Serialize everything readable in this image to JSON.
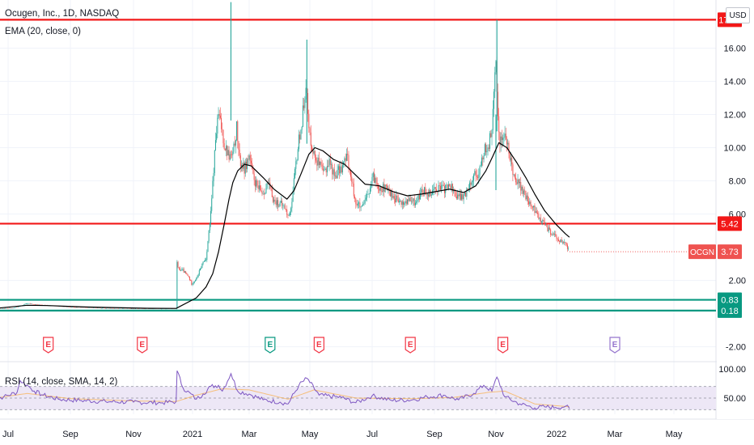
{
  "header": {
    "title": "Ocugen, Inc., 1D, NASDAQ",
    "ema_label": "EMA (20, close, 0)",
    "rsi_label": "RSI (14, close, SMA, 14, 2)",
    "currency": "USD"
  },
  "colors": {
    "up": "#26a69a",
    "down": "#ef5350",
    "ema": "#000000",
    "hline_red": "#f21818",
    "hline_green": "#089981",
    "rsi_line": "#7e57c2",
    "rsi_band": "#ede7f6",
    "earnings_red": "#f23645",
    "earnings_green": "#089981",
    "earnings_purple": "#9575cd"
  },
  "chart_data": {
    "type": "candlestick",
    "title": "Ocugen, Inc., 1D, NASDAQ",
    "currency": "USD",
    "x_ticks": [
      "Jul",
      "Sep",
      "Nov",
      "2021",
      "Mar",
      "May",
      "Jul",
      "Sep",
      "Nov",
      "2022",
      "Mar",
      "May"
    ],
    "y_ticks": [
      -2.0,
      2.0,
      6.0,
      8.0,
      10.0,
      12.0,
      14.0,
      16.0
    ],
    "y_range": [
      -2.8,
      18.9
    ],
    "last_price": {
      "label": "OCGN",
      "value": 3.73
    },
    "horizontal_levels": [
      {
        "value": 17.71,
        "color": "red"
      },
      {
        "value": 5.42,
        "color": "red"
      },
      {
        "value": 0.83,
        "color": "green"
      },
      {
        "value": 0.18,
        "color": "green"
      }
    ],
    "price_path": [
      [
        "2020-06-08",
        0.3
      ],
      [
        "2020-06-22",
        0.32
      ],
      [
        "2020-07-06",
        0.33
      ],
      [
        "2020-07-13",
        0.45
      ],
      [
        "2020-07-20",
        0.62
      ],
      [
        "2020-07-27",
        0.55
      ],
      [
        "2020-08-10",
        0.48
      ],
      [
        "2020-09-01",
        0.4
      ],
      [
        "2020-10-01",
        0.34
      ],
      [
        "2020-11-01",
        0.31
      ],
      [
        "2020-12-01",
        0.3
      ],
      [
        "2020-12-15",
        0.3
      ],
      [
        "2020-12-16",
        3.2
      ],
      [
        "2020-12-17",
        2.7
      ],
      [
        "2020-12-22",
        2.6
      ],
      [
        "2020-12-28",
        2.2
      ],
      [
        "2020-12-31",
        1.8
      ],
      [
        "2021-01-05",
        2.1
      ],
      [
        "2021-01-12",
        3.1
      ],
      [
        "2021-01-15",
        3.3
      ],
      [
        "2021-01-20",
        6.0
      ],
      [
        "2021-01-25",
        10.5
      ],
      [
        "2021-01-28",
        12.0
      ],
      [
        "2021-02-01",
        11.0
      ],
      [
        "2021-02-03",
        10.2
      ],
      [
        "2021-02-08",
        9.5
      ],
      [
        "2021-02-12",
        9.5
      ],
      [
        "2021-02-16",
        11.2
      ],
      [
        "2021-02-19",
        9.2
      ],
      [
        "2021-02-24",
        8.7
      ],
      [
        "2021-03-01",
        9.5
      ],
      [
        "2021-03-05",
        8.2
      ],
      [
        "2021-03-10",
        7.5
      ],
      [
        "2021-03-15",
        7.3
      ],
      [
        "2021-03-20",
        7.8
      ],
      [
        "2021-03-26",
        6.8
      ],
      [
        "2021-04-01",
        6.6
      ],
      [
        "2021-04-06",
        6.4
      ],
      [
        "2021-04-09",
        5.8
      ],
      [
        "2021-04-13",
        6.7
      ],
      [
        "2021-04-16",
        8.5
      ],
      [
        "2021-04-20",
        10.5
      ],
      [
        "2021-04-23",
        11.5
      ],
      [
        "2021-04-27",
        14.0
      ],
      [
        "2021-04-30",
        11.0
      ],
      [
        "2021-05-05",
        9.6
      ],
      [
        "2021-05-10",
        9.0
      ],
      [
        "2021-05-14",
        8.4
      ],
      [
        "2021-05-20",
        9.2
      ],
      [
        "2021-05-25",
        8.3
      ],
      [
        "2021-06-01",
        8.8
      ],
      [
        "2021-06-07",
        9.5
      ],
      [
        "2021-06-10",
        8.2
      ],
      [
        "2021-06-15",
        6.7
      ],
      [
        "2021-06-21",
        6.3
      ],
      [
        "2021-06-28",
        7.3
      ],
      [
        "2021-07-02",
        8.2
      ],
      [
        "2021-07-09",
        7.6
      ],
      [
        "2021-07-16",
        7.5
      ],
      [
        "2021-07-23",
        7.0
      ],
      [
        "2021-07-30",
        6.6
      ],
      [
        "2021-08-06",
        6.8
      ],
      [
        "2021-08-13",
        6.7
      ],
      [
        "2021-08-20",
        7.4
      ],
      [
        "2021-08-27",
        7.3
      ],
      [
        "2021-09-03",
        7.6
      ],
      [
        "2021-09-10",
        7.5
      ],
      [
        "2021-09-17",
        7.7
      ],
      [
        "2021-09-24",
        7.0
      ],
      [
        "2021-10-01",
        7.1
      ],
      [
        "2021-10-06",
        7.9
      ],
      [
        "2021-10-12",
        8.5
      ],
      [
        "2021-10-15",
        8.3
      ],
      [
        "2021-10-20",
        9.8
      ],
      [
        "2021-10-25",
        10.2
      ],
      [
        "2021-10-28",
        11.2
      ],
      [
        "2021-11-01",
        15.0
      ],
      [
        "2021-11-03",
        12.0
      ],
      [
        "2021-11-05",
        10.4
      ],
      [
        "2021-11-10",
        10.8
      ],
      [
        "2021-11-15",
        9.4
      ],
      [
        "2021-11-19",
        8.4
      ],
      [
        "2021-11-26",
        7.6
      ],
      [
        "2021-12-03",
        6.8
      ],
      [
        "2021-12-10",
        6.2
      ],
      [
        "2021-12-17",
        5.6
      ],
      [
        "2021-12-23",
        5.1
      ],
      [
        "2021-12-31",
        4.6
      ],
      [
        "2022-01-06",
        4.3
      ],
      [
        "2022-01-10",
        4.2
      ],
      [
        "2022-01-14",
        3.73
      ]
    ],
    "spikes": [
      [
        "2021-02-10",
        18.77
      ],
      [
        "2021-04-28",
        16.51
      ],
      [
        "2021-11-02",
        17.71
      ],
      [
        "2021-11-01",
        12.0
      ]
    ],
    "ema_20": [
      [
        "2020-06-08",
        0.29
      ],
      [
        "2020-07-20",
        0.5
      ],
      [
        "2020-08-10",
        0.48
      ],
      [
        "2020-09-15",
        0.4
      ],
      [
        "2020-11-15",
        0.32
      ],
      [
        "2020-12-15",
        0.31
      ],
      [
        "2021-01-05",
        0.95
      ],
      [
        "2021-01-15",
        1.6
      ],
      [
        "2021-01-22",
        2.4
      ],
      [
        "2021-01-28",
        3.7
      ],
      [
        "2021-02-03",
        5.4
      ],
      [
        "2021-02-08",
        6.9
      ],
      [
        "2021-02-12",
        7.9
      ],
      [
        "2021-02-17",
        8.6
      ],
      [
        "2021-02-24",
        9.0
      ],
      [
        "2021-03-03",
        8.9
      ],
      [
        "2021-03-15",
        8.2
      ],
      [
        "2021-03-26",
        7.5
      ],
      [
        "2021-04-08",
        6.9
      ],
      [
        "2021-04-15",
        7.4
      ],
      [
        "2021-04-22",
        8.4
      ],
      [
        "2021-04-30",
        9.6
      ],
      [
        "2021-05-06",
        10.0
      ],
      [
        "2021-05-14",
        9.8
      ],
      [
        "2021-05-24",
        9.3
      ],
      [
        "2021-06-04",
        9.0
      ],
      [
        "2021-06-14",
        8.4
      ],
      [
        "2021-06-24",
        7.8
      ],
      [
        "2021-07-08",
        7.7
      ],
      [
        "2021-07-22",
        7.35
      ],
      [
        "2021-08-05",
        7.1
      ],
      [
        "2021-08-19",
        7.2
      ],
      [
        "2021-09-02",
        7.35
      ],
      [
        "2021-09-16",
        7.5
      ],
      [
        "2021-09-30",
        7.3
      ],
      [
        "2021-10-12",
        7.7
      ],
      [
        "2021-10-22",
        8.6
      ],
      [
        "2021-10-29",
        9.5
      ],
      [
        "2021-11-04",
        10.3
      ],
      [
        "2021-11-12",
        10.0
      ],
      [
        "2021-11-22",
        9.1
      ],
      [
        "2021-12-01",
        8.2
      ],
      [
        "2021-12-10",
        7.2
      ],
      [
        "2021-12-20",
        6.2
      ],
      [
        "2021-12-31",
        5.4
      ],
      [
        "2022-01-10",
        4.8
      ],
      [
        "2022-01-14",
        4.6
      ]
    ],
    "earnings_markers": [
      {
        "date": "2020-08-10",
        "label": "E",
        "color": "red"
      },
      {
        "date": "2020-11-10",
        "label": "E",
        "color": "red"
      },
      {
        "date": "2021-03-22",
        "label": "E",
        "color": "green"
      },
      {
        "date": "2021-05-10",
        "label": "E",
        "color": "red"
      },
      {
        "date": "2021-08-08",
        "label": "E",
        "color": "red"
      },
      {
        "date": "2021-11-08",
        "label": "E",
        "color": "red"
      },
      {
        "date": "2022-03-01",
        "label": "E",
        "color": "purple"
      }
    ],
    "rsi": {
      "label": "RSI (14, close, SMA, 14, 2)",
      "y_ticks": [
        50.0,
        100.0
      ],
      "upper_band": 70,
      "lower_band": 30,
      "path": [
        [
          "2020-06-08",
          48
        ],
        [
          "2020-06-25",
          52
        ],
        [
          "2020-07-10",
          60
        ],
        [
          "2020-07-13",
          80
        ],
        [
          "2020-07-20",
          72
        ],
        [
          "2020-07-27",
          62
        ],
        [
          "2020-08-05",
          55
        ],
        [
          "2020-08-20",
          48
        ],
        [
          "2020-09-10",
          46
        ],
        [
          "2020-10-05",
          44
        ],
        [
          "2020-11-01",
          43
        ],
        [
          "2020-12-01",
          42
        ],
        [
          "2020-12-15",
          44
        ],
        [
          "2020-12-16",
          97
        ],
        [
          "2020-12-22",
          68
        ],
        [
          "2021-01-05",
          48
        ],
        [
          "2021-01-12",
          57
        ],
        [
          "2021-01-20",
          70
        ],
        [
          "2021-01-28",
          72
        ],
        [
          "2021-02-01",
          62
        ],
        [
          "2021-02-10",
          92
        ],
        [
          "2021-02-17",
          62
        ],
        [
          "2021-03-01",
          57
        ],
        [
          "2021-03-15",
          47
        ],
        [
          "2021-04-01",
          43
        ],
        [
          "2021-04-09",
          40
        ],
        [
          "2021-04-20",
          72
        ],
        [
          "2021-04-28",
          84
        ],
        [
          "2021-05-10",
          55
        ],
        [
          "2021-06-01",
          51
        ],
        [
          "2021-06-15",
          42
        ],
        [
          "2021-07-01",
          54
        ],
        [
          "2021-07-20",
          46
        ],
        [
          "2021-08-10",
          47
        ],
        [
          "2021-08-25",
          52
        ],
        [
          "2021-09-10",
          55
        ],
        [
          "2021-09-25",
          47
        ],
        [
          "2021-10-10",
          58
        ],
        [
          "2021-10-20",
          72
        ],
        [
          "2021-10-28",
          62
        ],
        [
          "2021-11-02",
          86
        ],
        [
          "2021-11-10",
          52
        ],
        [
          "2021-11-25",
          40
        ],
        [
          "2021-12-10",
          33
        ],
        [
          "2021-12-20",
          35
        ],
        [
          "2021-12-31",
          34
        ],
        [
          "2022-01-10",
          36
        ],
        [
          "2022-01-14",
          32
        ]
      ],
      "ma_path": [
        [
          "2020-06-08",
          49
        ],
        [
          "2020-07-20",
          58
        ],
        [
          "2020-09-01",
          49
        ],
        [
          "2020-11-01",
          45
        ],
        [
          "2020-12-15",
          44
        ],
        [
          "2021-01-05",
          55
        ],
        [
          "2021-02-01",
          66
        ],
        [
          "2021-03-01",
          64
        ],
        [
          "2021-04-09",
          48
        ],
        [
          "2021-05-05",
          64
        ],
        [
          "2021-06-15",
          50
        ],
        [
          "2021-08-10",
          49
        ],
        [
          "2021-09-20",
          51
        ],
        [
          "2021-10-25",
          60
        ],
        [
          "2021-11-10",
          62
        ],
        [
          "2021-12-10",
          40
        ],
        [
          "2022-01-14",
          35
        ]
      ]
    }
  }
}
